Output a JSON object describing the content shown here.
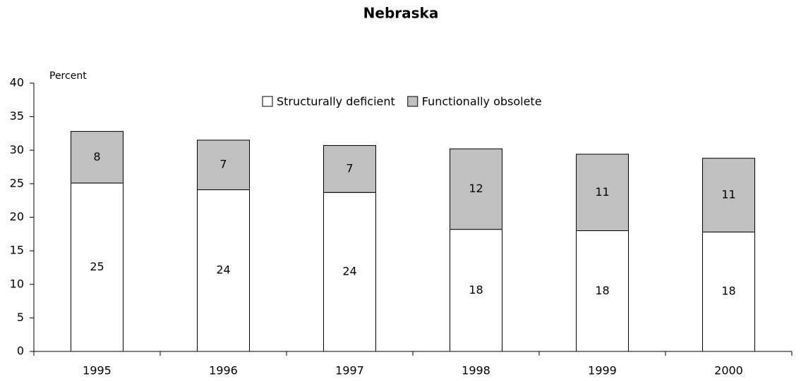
{
  "chart_data": {
    "type": "stacked_bar",
    "title": "Nebraska",
    "y_label": "Percent",
    "categories": [
      "1995",
      "1996",
      "1997",
      "1998",
      "1999",
      "2000"
    ],
    "series": [
      {
        "name": "Structurally deficient",
        "color": "#ffffff",
        "values": [
          25.1,
          24.1,
          23.7,
          18.2,
          18.0,
          17.8
        ],
        "value_labels": [
          "25",
          "24",
          "24",
          "18",
          "18",
          "18"
        ]
      },
      {
        "name": "Functionally obsolete",
        "color": "#c0c0c0",
        "values": [
          7.7,
          7.4,
          7.0,
          12.0,
          11.4,
          11.0
        ],
        "value_labels": [
          "8",
          "7",
          "7",
          "12",
          "11",
          "11"
        ]
      }
    ],
    "ylim": [
      0,
      40
    ],
    "yticks": [
      0,
      5,
      10,
      15,
      20,
      25,
      30,
      35,
      40
    ],
    "legend": "top"
  }
}
